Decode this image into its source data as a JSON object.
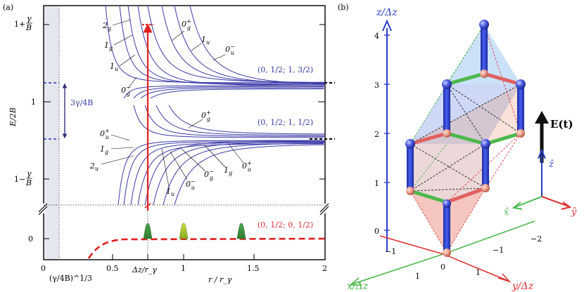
{
  "panels": {
    "a_label": "(a)",
    "b_label": "(b)"
  },
  "panel_a": {
    "y_axis_label": "E/2B",
    "x_axis_label": "r / r_γ",
    "y_ticks": [
      {
        "label": "1+γ/B",
        "value": 1.333
      },
      {
        "label": "1",
        "value": 1.0
      },
      {
        "label": "1−γ/B",
        "value": 0.667
      },
      {
        "label": "0",
        "value": 0.0
      }
    ],
    "x_ticks": [
      {
        "label": "0",
        "value": 0
      },
      {
        "label": "0.5",
        "value": 0.5
      },
      {
        "label": "1",
        "value": 1.0
      },
      {
        "label": "1.5",
        "value": 1.5
      },
      {
        "label": "2",
        "value": 2.0
      }
    ],
    "x_marker_gamma": "(γ/4B)^1/3",
    "x_marker_delta": "Δz/r_γ",
    "gap_label": "3γ/4B",
    "manifold_upper": "(0, 1/2; 1, 3/2)",
    "manifold_lower": "(0, 1/2; 1, 1/2)",
    "ground_label": "(0, 1/2; 0, 1/2)",
    "upper_curve_labels": [
      "2g",
      "0g+",
      "1u",
      "1g",
      "0u−",
      "1u",
      "0g−"
    ],
    "lower_curve_labels": [
      "0g+",
      "0u+",
      "1g",
      "2u",
      "1u",
      "0u−",
      "0g−",
      "1g",
      "0u+"
    ],
    "colors": {
      "curve": "#3a3aa8",
      "arrow": "#e02020",
      "ground": "#e02020",
      "shading": "#e4e8ee"
    }
  },
  "panel_b": {
    "z_axis_label": "z/Δz",
    "x_axis_label": "x/Δz",
    "y_axis_label": "y/Δz",
    "z_ticks": [
      "0",
      "1",
      "2",
      "3",
      "4"
    ],
    "x_ticks": [
      "−1",
      "1"
    ],
    "y_ticks": [
      "−1",
      "1",
      "−2"
    ],
    "origin_label": "0",
    "field_label": "E(t)",
    "zhat_label": "ẑ",
    "xhat_label": "x̂",
    "yhat_label": "ŷ",
    "colors": {
      "z_axis": "#2a3ec8",
      "x_axis": "#4cb84c",
      "y_axis": "#e03030",
      "field": "#111111"
    }
  }
}
